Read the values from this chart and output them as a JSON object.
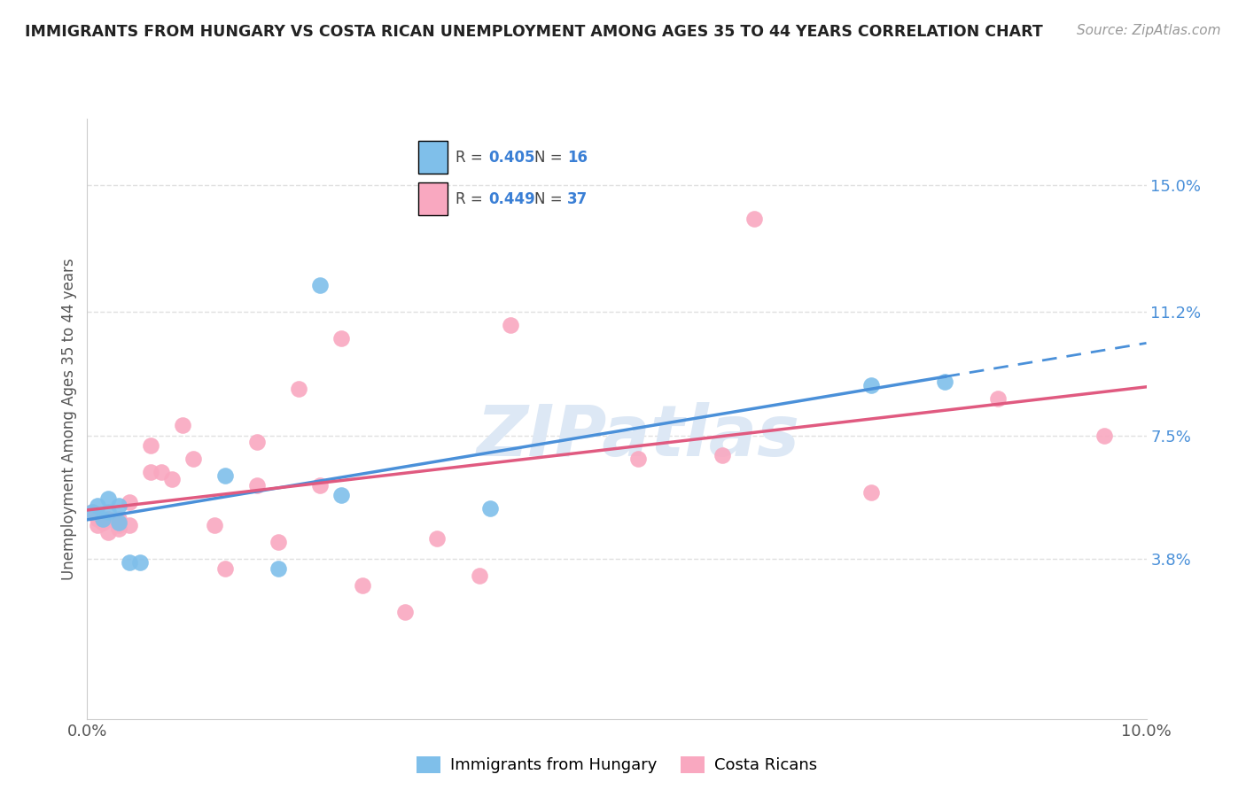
{
  "title": "IMMIGRANTS FROM HUNGARY VS COSTA RICAN UNEMPLOYMENT AMONG AGES 35 TO 44 YEARS CORRELATION CHART",
  "source": "Source: ZipAtlas.com",
  "ylabel": "Unemployment Among Ages 35 to 44 years",
  "xlim": [
    0.0,
    0.1
  ],
  "ylim": [
    -0.01,
    0.17
  ],
  "x_ticks": [
    0.0,
    0.02,
    0.04,
    0.06,
    0.08,
    0.1
  ],
  "x_tick_labels": [
    "0.0%",
    "",
    "",
    "",
    "",
    "10.0%"
  ],
  "y_tick_labels_right": [
    "3.8%",
    "7.5%",
    "11.2%",
    "15.0%"
  ],
  "y_ticks_right": [
    0.038,
    0.075,
    0.112,
    0.15
  ],
  "hungary_color": "#7fbfea",
  "costarica_color": "#f9a8c0",
  "line_hungary_color": "#4a90d9",
  "line_costarica_color": "#e05a80",
  "hungary_R": 0.405,
  "hungary_N": 16,
  "costarica_R": 0.449,
  "costarica_N": 37,
  "hungary_x": [
    0.0005,
    0.001,
    0.0015,
    0.002,
    0.002,
    0.003,
    0.003,
    0.004,
    0.005,
    0.013,
    0.018,
    0.022,
    0.024,
    0.038,
    0.074,
    0.081
  ],
  "hungary_y": [
    0.052,
    0.054,
    0.05,
    0.052,
    0.056,
    0.049,
    0.054,
    0.037,
    0.037,
    0.063,
    0.035,
    0.12,
    0.057,
    0.053,
    0.09,
    0.091
  ],
  "costarica_x": [
    0.0005,
    0.001,
    0.001,
    0.0015,
    0.002,
    0.002,
    0.002,
    0.003,
    0.003,
    0.003,
    0.004,
    0.004,
    0.006,
    0.006,
    0.007,
    0.008,
    0.009,
    0.01,
    0.012,
    0.013,
    0.016,
    0.016,
    0.018,
    0.02,
    0.022,
    0.024,
    0.026,
    0.03,
    0.033,
    0.037,
    0.04,
    0.052,
    0.06,
    0.063,
    0.074,
    0.086,
    0.096
  ],
  "costarica_y": [
    0.052,
    0.05,
    0.048,
    0.049,
    0.05,
    0.05,
    0.046,
    0.047,
    0.048,
    0.05,
    0.055,
    0.048,
    0.072,
    0.064,
    0.064,
    0.062,
    0.078,
    0.068,
    0.048,
    0.035,
    0.073,
    0.06,
    0.043,
    0.089,
    0.06,
    0.104,
    0.03,
    0.022,
    0.044,
    0.033,
    0.108,
    0.068,
    0.069,
    0.14,
    0.058,
    0.086,
    0.075
  ],
  "background_color": "#ffffff",
  "watermark": "ZIPatlas",
  "grid_color": "#e0e0e0"
}
